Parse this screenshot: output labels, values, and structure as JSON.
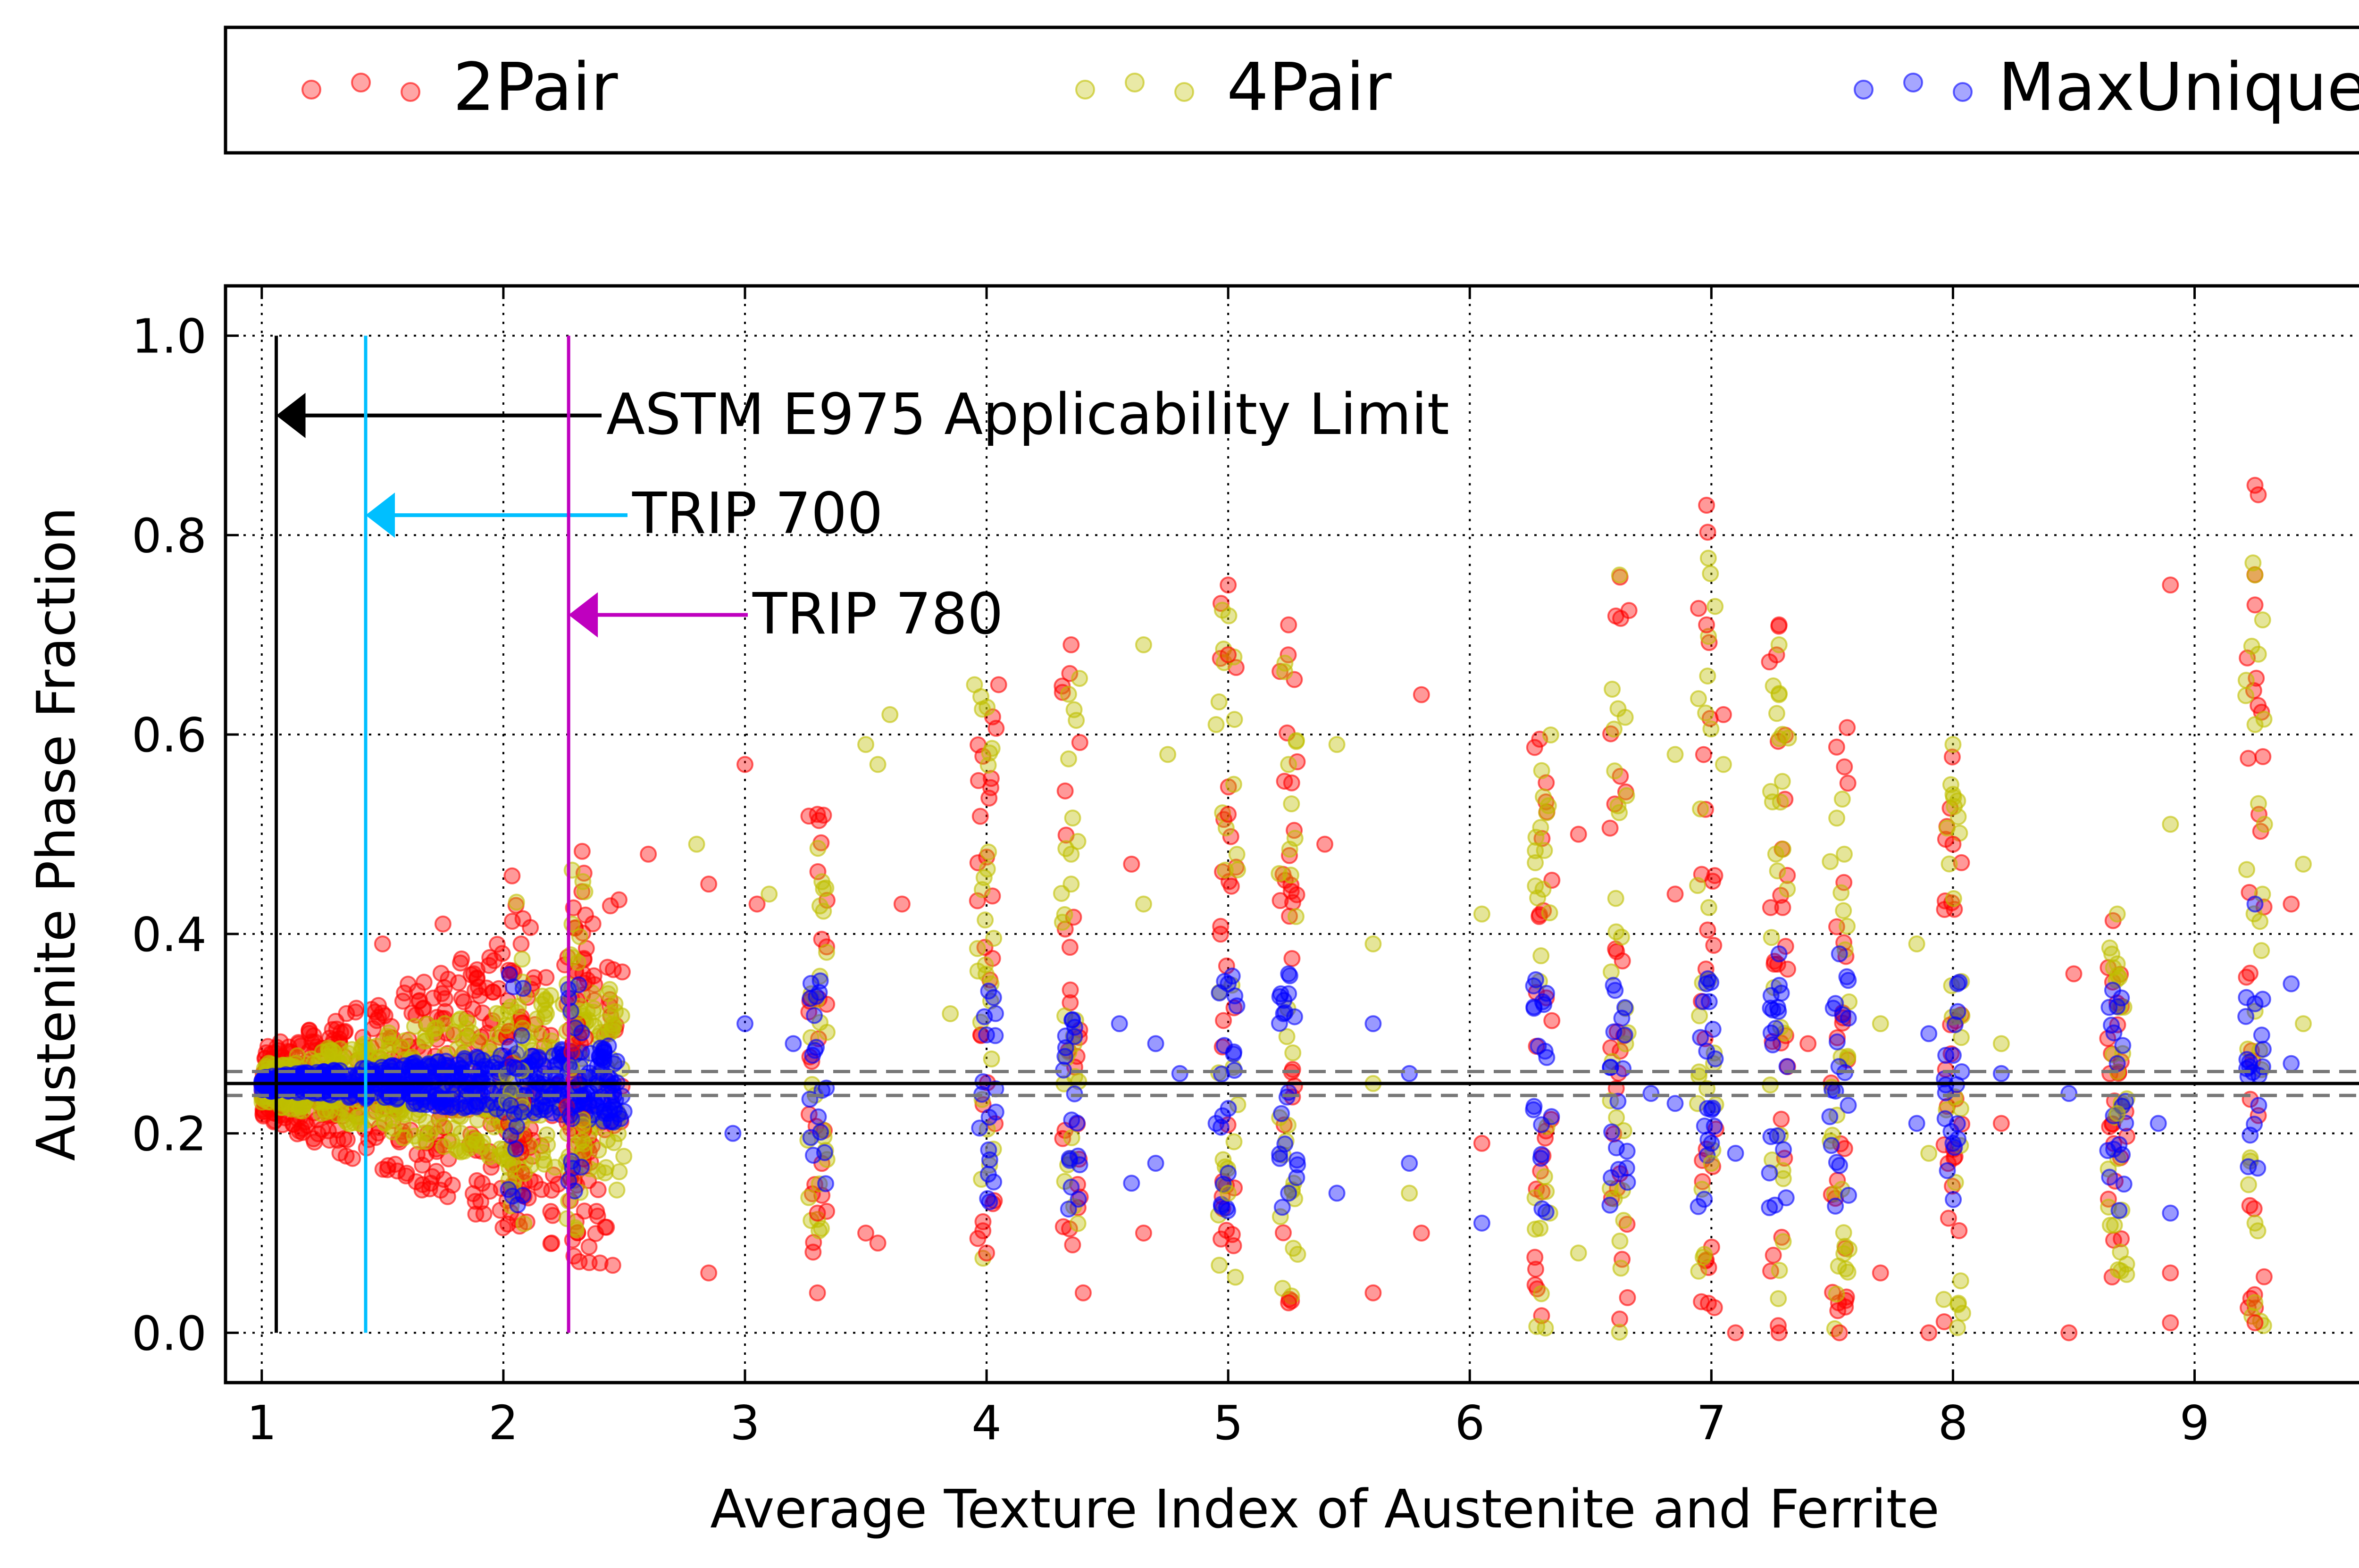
{
  "chart_data": {
    "type": "scatter",
    "xlabel": "Average Texture Index of Austenite and Ferrite",
    "ylabel": "Austenite Phase Fraction",
    "xlim": [
      0.85,
      9.95
    ],
    "ylim": [
      -0.05,
      1.05
    ],
    "xticks": [
      "1",
      "2",
      "3",
      "4",
      "5",
      "6",
      "7",
      "8",
      "9"
    ],
    "yticks": [
      "0.0",
      "0.2",
      "0.4",
      "0.6",
      "0.8",
      "1.0"
    ],
    "grid": true,
    "legend_position": "top (outside plot)",
    "series": [
      {
        "name": "2Pair",
        "color": "#ff0000"
      },
      {
        "name": "4Pair",
        "color": "#bfbf00"
      },
      {
        "name": "MaxUnique",
        "color": "#0000ff"
      }
    ],
    "reference_lines": {
      "horizontal_solid": 0.25,
      "horizontal_dashed": [
        0.238,
        0.262
      ],
      "vertical": [
        {
          "x": 1.06,
          "color": "#000000",
          "label": "ASTM E975 Applicability Limit",
          "arrow_y": 0.92
        },
        {
          "x": 1.43,
          "color": "#00bfff",
          "label": "TRIP 700",
          "arrow_y": 0.82
        },
        {
          "x": 2.27,
          "color": "#bf00bf",
          "label": "TRIP 780",
          "arrow_y": 0.72
        }
      ]
    },
    "columns": [
      {
        "x": 2.05,
        "series": [
          "2Pair",
          "4Pair",
          "MaxUnique"
        ],
        "ymin": 0.09,
        "ymax": 0.47
      },
      {
        "x": 2.3,
        "series": [
          "2Pair",
          "4Pair",
          "MaxUnique"
        ],
        "ymin": 0.07,
        "ymax": 0.5
      },
      {
        "x": 3.3,
        "series": [
          "2Pair",
          "4Pair",
          "MaxUnique"
        ],
        "ymin": 0.08,
        "ymax": 0.52
      },
      {
        "x": 4.0,
        "series": [
          "2Pair",
          "4Pair",
          "MaxUnique"
        ],
        "ymin": 0.06,
        "ymax": 0.66
      },
      {
        "x": 4.35,
        "series": [
          "2Pair",
          "4Pair",
          "MaxUnique"
        ],
        "ymin": 0.08,
        "ymax": 0.69
      },
      {
        "x": 5.0,
        "series": [
          "2Pair",
          "4Pair",
          "MaxUnique"
        ],
        "ymin": 0.05,
        "ymax": 0.75
      },
      {
        "x": 5.25,
        "series": [
          "2Pair",
          "4Pair",
          "MaxUnique"
        ],
        "ymin": 0.03,
        "ymax": 0.71
      },
      {
        "x": 6.3,
        "series": [
          "2Pair",
          "4Pair",
          "MaxUnique"
        ],
        "ymin": 0.0,
        "ymax": 0.62
      },
      {
        "x": 6.62,
        "series": [
          "2Pair",
          "4Pair",
          "MaxUnique"
        ],
        "ymin": 0.0,
        "ymax": 0.76
      },
      {
        "x": 6.98,
        "series": [
          "2Pair",
          "4Pair",
          "MaxUnique"
        ],
        "ymin": 0.0,
        "ymax": 0.83
      },
      {
        "x": 7.28,
        "series": [
          "2Pair",
          "4Pair",
          "MaxUnique"
        ],
        "ymin": 0.0,
        "ymax": 0.71
      },
      {
        "x": 7.53,
        "series": [
          "2Pair",
          "4Pair",
          "MaxUnique"
        ],
        "ymin": 0.0,
        "ymax": 0.63
      },
      {
        "x": 8.0,
        "series": [
          "2Pair",
          "4Pair",
          "MaxUnique"
        ],
        "ymin": 0.0,
        "ymax": 0.59
      },
      {
        "x": 8.68,
        "series": [
          "2Pair",
          "4Pair",
          "MaxUnique"
        ],
        "ymin": 0.05,
        "ymax": 0.42
      },
      {
        "x": 9.25,
        "series": [
          "2Pair",
          "4Pair",
          "MaxUnique"
        ],
        "ymin": 0.0,
        "ymax": 0.85
      }
    ],
    "points": [
      [
        6.98,
        0.83,
        "2Pair"
      ],
      [
        9.25,
        0.85,
        "2Pair"
      ],
      [
        5.0,
        0.75,
        "2Pair"
      ],
      [
        5.25,
        0.71,
        "2Pair"
      ],
      [
        6.98,
        0.71,
        "2Pair"
      ],
      [
        7.28,
        0.71,
        "2Pair"
      ],
      [
        9.25,
        0.73,
        "2Pair"
      ],
      [
        8.9,
        0.75,
        "2Pair"
      ],
      [
        4.35,
        0.69,
        "2Pair"
      ],
      [
        5.0,
        0.68,
        "2Pair"
      ],
      [
        5.8,
        0.64,
        "2Pair"
      ],
      [
        4.05,
        0.65,
        "2Pair"
      ],
      [
        3.0,
        0.57,
        "2Pair"
      ],
      [
        3.3,
        0.52,
        "2Pair"
      ],
      [
        5.0,
        0.52,
        "2Pair"
      ],
      [
        5.4,
        0.49,
        "2Pair"
      ],
      [
        2.6,
        0.48,
        "2Pair"
      ],
      [
        2.85,
        0.45,
        "2Pair"
      ],
      [
        3.05,
        0.43,
        "2Pair"
      ],
      [
        3.65,
        0.43,
        "2Pair"
      ],
      [
        4.6,
        0.47,
        "2Pair"
      ],
      [
        3.3,
        0.12,
        "2Pair"
      ],
      [
        3.5,
        0.1,
        "2Pair"
      ],
      [
        3.55,
        0.09,
        "2Pair"
      ],
      [
        4.0,
        0.08,
        "2Pair"
      ],
      [
        4.4,
        0.04,
        "2Pair"
      ],
      [
        4.65,
        0.1,
        "2Pair"
      ],
      [
        5.25,
        0.03,
        "2Pair"
      ],
      [
        5.6,
        0.04,
        "2Pair"
      ],
      [
        5.8,
        0.1,
        "2Pair"
      ],
      [
        6.05,
        0.19,
        "2Pair"
      ],
      [
        7.1,
        0.0,
        "2Pair"
      ],
      [
        7.28,
        0.0,
        "2Pair"
      ],
      [
        7.53,
        0.0,
        "2Pair"
      ],
      [
        7.9,
        0.0,
        "2Pair"
      ],
      [
        8.48,
        0.0,
        "2Pair"
      ],
      [
        8.9,
        0.01,
        "2Pair"
      ],
      [
        9.25,
        0.01,
        "2Pair"
      ],
      [
        8.2,
        0.21,
        "2Pair"
      ],
      [
        7.7,
        0.06,
        "2Pair"
      ],
      [
        3.3,
        0.04,
        "2Pair"
      ],
      [
        2.85,
        0.06,
        "2Pair"
      ],
      [
        2.4,
        0.07,
        "2Pair"
      ],
      [
        2.2,
        0.09,
        "2Pair"
      ],
      [
        1.7,
        0.15,
        "2Pair"
      ],
      [
        1.6,
        0.16,
        "2Pair"
      ],
      [
        1.5,
        0.39,
        "2Pair"
      ],
      [
        1.75,
        0.41,
        "2Pair"
      ],
      [
        9.4,
        0.43,
        "2Pair"
      ],
      [
        8.0,
        0.49,
        "2Pair"
      ],
      [
        8.5,
        0.36,
        "2Pair"
      ],
      [
        8.9,
        0.06,
        "2Pair"
      ],
      [
        6.85,
        0.44,
        "2Pair"
      ],
      [
        7.05,
        0.62,
        "2Pair"
      ],
      [
        7.4,
        0.29,
        "2Pair"
      ],
      [
        6.45,
        0.5,
        "2Pair"
      ],
      [
        4.65,
        0.43,
        "4Pair"
      ],
      [
        4.65,
        0.69,
        "4Pair"
      ],
      [
        4.75,
        0.58,
        "4Pair"
      ],
      [
        4.95,
        0.61,
        "4Pair"
      ],
      [
        5.25,
        0.57,
        "4Pair"
      ],
      [
        5.45,
        0.59,
        "4Pair"
      ],
      [
        5.6,
        0.39,
        "4Pair"
      ],
      [
        6.05,
        0.42,
        "4Pair"
      ],
      [
        6.62,
        0.76,
        "4Pair"
      ],
      [
        7.28,
        0.69,
        "4Pair"
      ],
      [
        7.28,
        0.64,
        "4Pair"
      ],
      [
        9.25,
        0.76,
        "4Pair"
      ],
      [
        9.25,
        0.61,
        "4Pair"
      ],
      [
        9.45,
        0.47,
        "4Pair"
      ],
      [
        9.45,
        0.31,
        "4Pair"
      ],
      [
        8.9,
        0.51,
        "4Pair"
      ],
      [
        8.68,
        0.42,
        "4Pair"
      ],
      [
        8.68,
        0.37,
        "4Pair"
      ],
      [
        8.2,
        0.29,
        "4Pair"
      ],
      [
        8.0,
        0.59,
        "4Pair"
      ],
      [
        8.0,
        0.54,
        "4Pair"
      ],
      [
        7.85,
        0.39,
        "4Pair"
      ],
      [
        7.7,
        0.31,
        "4Pair"
      ],
      [
        7.55,
        0.48,
        "4Pair"
      ],
      [
        7.05,
        0.57,
        "4Pair"
      ],
      [
        6.85,
        0.58,
        "4Pair"
      ],
      [
        6.45,
        0.08,
        "4Pair"
      ],
      [
        7.0,
        0.17,
        "4Pair"
      ],
      [
        5.0,
        0.14,
        "4Pair"
      ],
      [
        5.6,
        0.25,
        "4Pair"
      ],
      [
        5.75,
        0.14,
        "4Pair"
      ],
      [
        8.68,
        0.22,
        "4Pair"
      ],
      [
        7.9,
        0.18,
        "4Pair"
      ],
      [
        9.25,
        0.11,
        "4Pair"
      ],
      [
        3.55,
        0.57,
        "4Pair"
      ],
      [
        3.5,
        0.59,
        "4Pair"
      ],
      [
        3.6,
        0.62,
        "4Pair"
      ],
      [
        2.8,
        0.49,
        "4Pair"
      ],
      [
        3.1,
        0.44,
        "4Pair"
      ],
      [
        3.95,
        0.65,
        "4Pair"
      ],
      [
        4.35,
        0.48,
        "4Pair"
      ],
      [
        4.35,
        0.45,
        "4Pair"
      ],
      [
        3.85,
        0.32,
        "4Pair"
      ],
      [
        5.0,
        0.35,
        "MaxUnique"
      ],
      [
        5.25,
        0.36,
        "MaxUnique"
      ],
      [
        5.25,
        0.34,
        "MaxUnique"
      ],
      [
        5.6,
        0.31,
        "MaxUnique"
      ],
      [
        5.75,
        0.26,
        "MaxUnique"
      ],
      [
        5.45,
        0.14,
        "MaxUnique"
      ],
      [
        5.75,
        0.17,
        "MaxUnique"
      ],
      [
        6.05,
        0.11,
        "MaxUnique"
      ],
      [
        6.98,
        0.35,
        "MaxUnique"
      ],
      [
        7.28,
        0.38,
        "MaxUnique"
      ],
      [
        7.53,
        0.38,
        "MaxUnique"
      ],
      [
        7.9,
        0.3,
        "MaxUnique"
      ],
      [
        8.2,
        0.26,
        "MaxUnique"
      ],
      [
        8.48,
        0.24,
        "MaxUnique"
      ],
      [
        8.68,
        0.27,
        "MaxUnique"
      ],
      [
        8.85,
        0.21,
        "MaxUnique"
      ],
      [
        8.9,
        0.12,
        "MaxUnique"
      ],
      [
        9.25,
        0.43,
        "MaxUnique"
      ],
      [
        9.25,
        0.33,
        "MaxUnique"
      ],
      [
        9.4,
        0.27,
        "MaxUnique"
      ],
      [
        9.4,
        0.35,
        "MaxUnique"
      ],
      [
        8.0,
        0.19,
        "MaxUnique"
      ],
      [
        7.85,
        0.21,
        "MaxUnique"
      ],
      [
        7.1,
        0.18,
        "MaxUnique"
      ],
      [
        6.85,
        0.23,
        "MaxUnique"
      ],
      [
        6.75,
        0.24,
        "MaxUnique"
      ],
      [
        4.7,
        0.29,
        "MaxUnique"
      ],
      [
        4.8,
        0.26,
        "MaxUnique"
      ],
      [
        4.55,
        0.31,
        "MaxUnique"
      ],
      [
        4.6,
        0.15,
        "MaxUnique"
      ],
      [
        4.7,
        0.17,
        "MaxUnique"
      ],
      [
        4.95,
        0.21,
        "MaxUnique"
      ],
      [
        5.0,
        0.16,
        "MaxUnique"
      ],
      [
        5.25,
        0.14,
        "MaxUnique"
      ],
      [
        3.0,
        0.31,
        "MaxUnique"
      ],
      [
        3.2,
        0.29,
        "MaxUnique"
      ],
      [
        2.95,
        0.2,
        "MaxUnique"
      ]
    ]
  },
  "legend": {
    "items": [
      {
        "label": "2Pair",
        "color": "#ff0000"
      },
      {
        "label": "4Pair",
        "color": "#bfbf00"
      },
      {
        "label": "MaxUnique",
        "color": "#0000ff"
      }
    ]
  },
  "annotations": {
    "astm": "ASTM E975 Applicability Limit",
    "trip700": "TRIP 700",
    "trip780": "TRIP 780"
  }
}
